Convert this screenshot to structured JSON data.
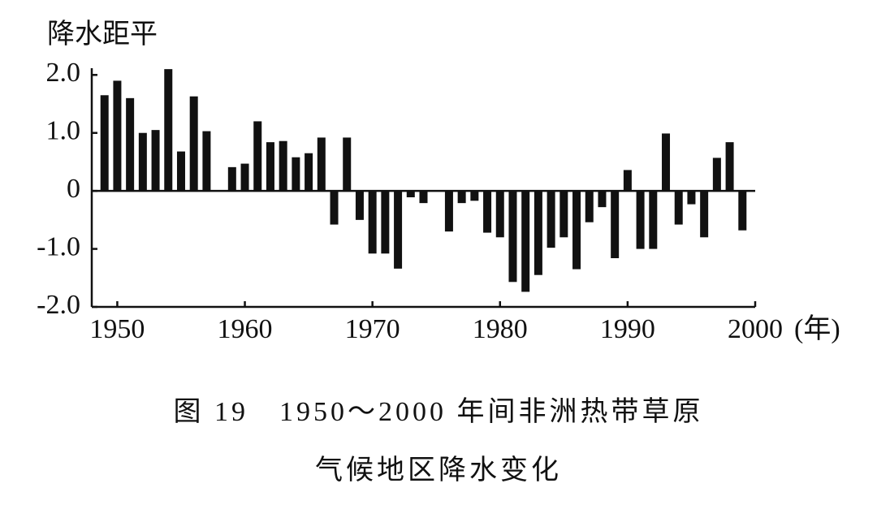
{
  "chart_data": {
    "type": "bar",
    "y_label": "降水距平",
    "x_label": "(年)",
    "caption": [
      "图 19　1950～2000 年间非洲热带草原",
      "气候地区降水变化"
    ],
    "color": "#111111",
    "x": [
      1949,
      1950,
      1951,
      1952,
      1953,
      1954,
      1955,
      1956,
      1957,
      1959,
      1960,
      1961,
      1962,
      1963,
      1964,
      1965,
      1966,
      1967,
      1968,
      1969,
      1970,
      1971,
      1972,
      1973,
      1974,
      1976,
      1977,
      1978,
      1979,
      1980,
      1981,
      1982,
      1983,
      1984,
      1985,
      1986,
      1987,
      1988,
      1989,
      1990,
      1991,
      1992,
      1993,
      1994,
      1995,
      1996,
      1997,
      1998,
      1999
    ],
    "values": [
      1.65,
      1.9,
      1.6,
      1.0,
      1.05,
      2.1,
      0.68,
      1.63,
      1.03,
      0.41,
      0.47,
      1.2,
      0.84,
      0.86,
      0.58,
      0.65,
      0.92,
      -0.58,
      0.92,
      -0.5,
      -1.08,
      -1.08,
      -1.34,
      -0.11,
      -0.21,
      -0.7,
      -0.21,
      -0.17,
      -0.72,
      -0.8,
      -1.57,
      -1.74,
      -1.45,
      -0.98,
      -0.8,
      -1.35,
      -0.54,
      -0.28,
      -1.16,
      0.36,
      -1.0,
      -1.0,
      0.99,
      -0.58,
      -0.23,
      -0.8,
      0.57,
      0.84,
      -0.68
    ],
    "xlim": [
      1948,
      2000
    ],
    "xticks": [
      1950,
      1960,
      1970,
      1980,
      1990,
      2000
    ],
    "ylim": [
      -2,
      2.2
    ],
    "yticks": [
      {
        "value": 2,
        "label": "2.0"
      },
      {
        "value": 1,
        "label": "1.0"
      },
      0,
      {
        "value": -1,
        "label": "-1.0"
      },
      {
        "value": -2,
        "label": "-2.0"
      }
    ]
  }
}
